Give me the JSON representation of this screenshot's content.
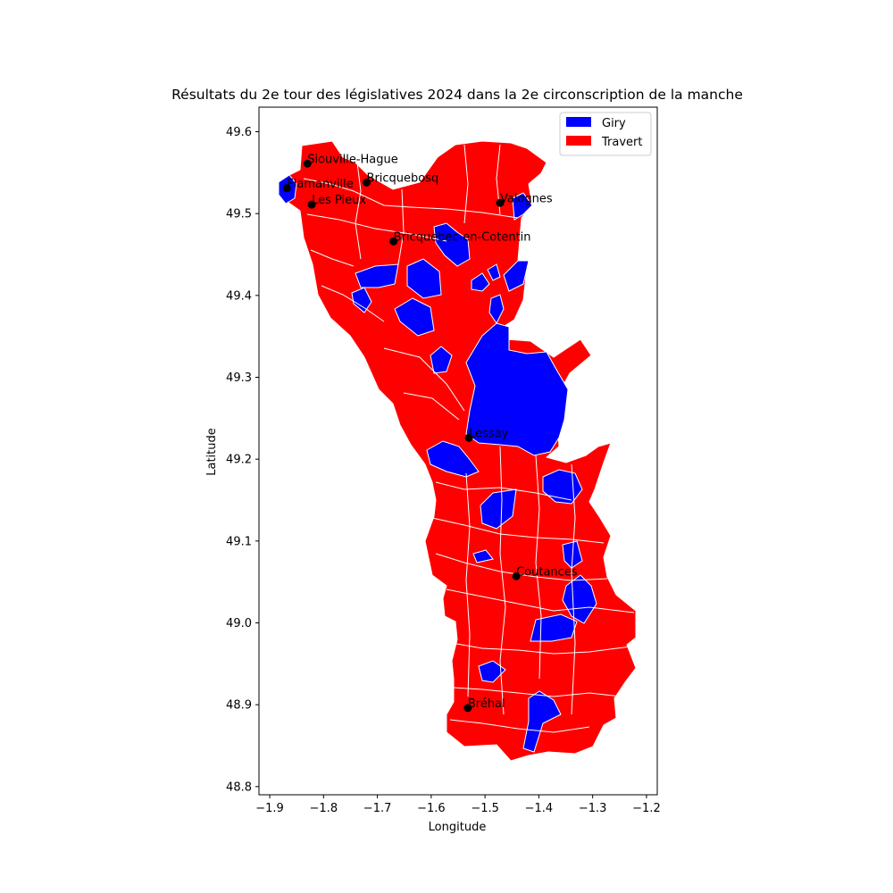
{
  "chart_data": {
    "type": "choropleth",
    "title": "Résultats du 2e tour des législatives 2024 dans la 2e circonscription de la manche",
    "xlabel": "Longitude",
    "ylabel": "Latitude",
    "xlim": [
      -1.92,
      -1.18
    ],
    "ylim": [
      48.79,
      49.63
    ],
    "xticks": [
      -1.9,
      -1.8,
      -1.7,
      -1.6,
      -1.5,
      -1.4,
      -1.3,
      -1.2
    ],
    "yticks": [
      48.8,
      48.9,
      49.0,
      49.1,
      49.2,
      49.3,
      49.4,
      49.5,
      49.6
    ],
    "legend_position": "upper right",
    "legend": [
      {
        "label": "Giry",
        "color": "#0000ff"
      },
      {
        "label": "Travert",
        "color": "#ff0000"
      }
    ],
    "towns": [
      {
        "name": "Siouville-Hague",
        "lon": -1.83,
        "lat": 49.561
      },
      {
        "name": "Flamanville",
        "lon": -1.868,
        "lat": 49.531
      },
      {
        "name": "Bricquebosq",
        "lon": -1.72,
        "lat": 49.538
      },
      {
        "name": "Les Pieux",
        "lon": -1.822,
        "lat": 49.511
      },
      {
        "name": "Valognes",
        "lon": -1.472,
        "lat": 49.513
      },
      {
        "name": "Bricquebec-en-Cotentin",
        "lon": -1.67,
        "lat": 49.466
      },
      {
        "name": "Lessay",
        "lon": -1.53,
        "lat": 49.226
      },
      {
        "name": "Coutances",
        "lon": -1.442,
        "lat": 49.057
      },
      {
        "name": "Bréhal",
        "lon": -1.532,
        "lat": 48.896
      }
    ]
  }
}
